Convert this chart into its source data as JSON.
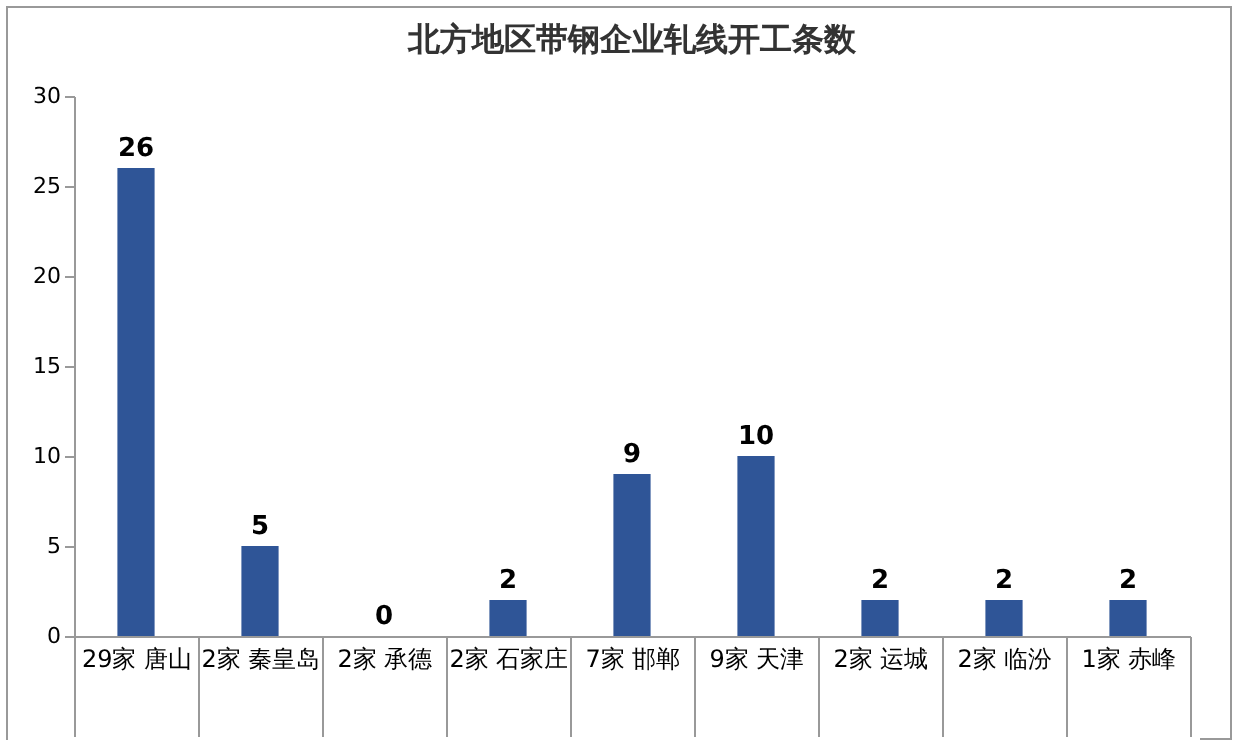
{
  "chart_data": {
    "type": "bar",
    "title": "北方地区带钢企业轧线开工条数",
    "categories": [
      "29家\n唐山",
      "2家\n秦皇岛",
      "2家\n承德",
      "2家\n石家庄",
      "7家\n邯郸",
      "9家\n天津",
      "2家\n运城",
      "2家\n临汾",
      "1家\n赤峰"
    ],
    "values": [
      26,
      5,
      0,
      2,
      9,
      10,
      2,
      2,
      2
    ],
    "color": "#2f5597",
    "ylim": [
      0,
      30
    ],
    "yticks": [
      0,
      5,
      10,
      15,
      20,
      25,
      30
    ],
    "grid": false,
    "data_labels": true
  }
}
